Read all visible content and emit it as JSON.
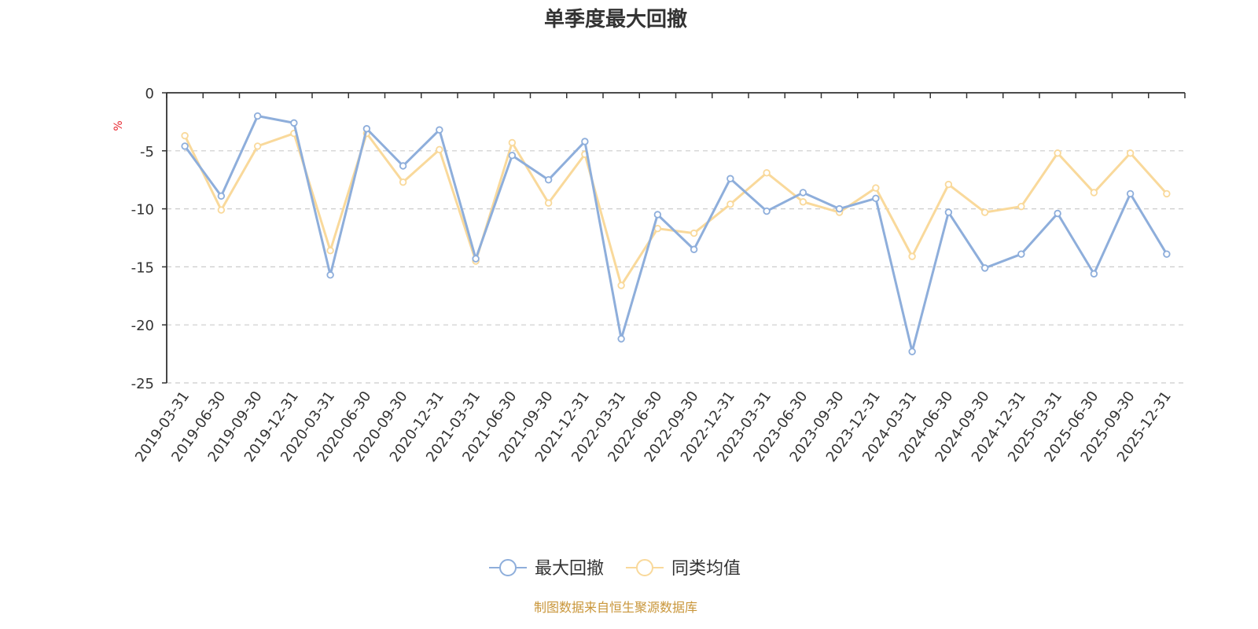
{
  "chart_data": {
    "type": "line",
    "title": "单季度最大回撤",
    "ylabel": "%",
    "ylim": [
      -25,
      0
    ],
    "yticks": [
      0,
      -5,
      -10,
      -15,
      -20,
      -25
    ],
    "ytick_labels": [
      "0",
      "-5",
      "-10",
      "-15",
      "-20",
      "-25"
    ],
    "grid": true,
    "legend_position": "bottom-center",
    "categories": [
      "2019-03-31",
      "2019-06-30",
      "2019-09-30",
      "2019-12-31",
      "2020-03-31",
      "2020-06-30",
      "2020-09-30",
      "2020-12-31",
      "2021-03-31",
      "2021-06-30",
      "2021-09-30",
      "2021-12-31",
      "2022-03-31",
      "2022-06-30",
      "2022-09-30",
      "2022-12-31",
      "2023-03-31",
      "2023-06-30",
      "2023-09-30",
      "2023-12-31",
      "2024-03-31",
      "2024-06-30",
      "2024-09-30",
      "2024-12-31",
      "2025-03-31",
      "2025-06-30",
      "2025-09-30",
      "2025-12-31"
    ],
    "series": [
      {
        "name": "最大回撤",
        "color": "#8eaedb",
        "values": [
          -4.6,
          -8.9,
          -2.0,
          -2.6,
          -15.7,
          -3.1,
          -6.3,
          -3.2,
          -14.3,
          -5.4,
          -7.5,
          -4.2,
          -21.2,
          -10.5,
          -13.5,
          -7.4,
          -10.2,
          -8.6,
          -10.0,
          -9.1,
          -22.3,
          -10.3,
          -15.1,
          -13.9,
          -10.4,
          -15.6,
          -8.7,
          -13.9
        ]
      },
      {
        "name": "同类均值",
        "color": "#f9d99b",
        "values": [
          -3.7,
          -10.1,
          -4.6,
          -3.5,
          -13.6,
          -3.5,
          -7.7,
          -4.9,
          -14.5,
          -4.3,
          -9.5,
          -5.3,
          -16.6,
          -11.7,
          -12.1,
          -9.6,
          -6.9,
          -9.4,
          -10.3,
          -8.2,
          -14.1,
          -7.9,
          -10.3,
          -9.8,
          -5.2,
          -8.6,
          -5.2,
          -8.7
        ]
      }
    ]
  },
  "source": "制图数据来自恒生聚源数据库"
}
